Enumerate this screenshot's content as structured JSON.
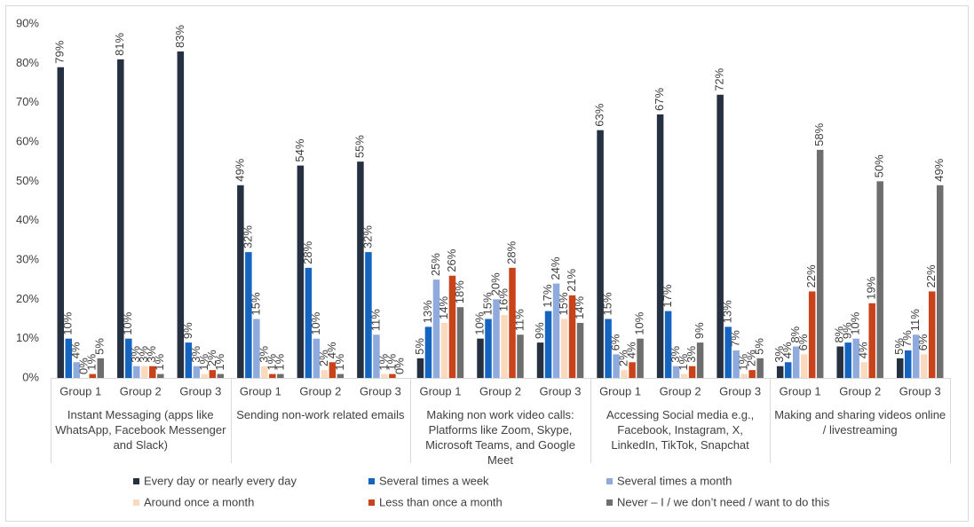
{
  "chart_data": {
    "type": "bar",
    "categories": [
      "Group 1",
      "Group 2",
      "Group 3",
      "Group 1",
      "Group 2",
      "Group 3",
      "Group 1",
      "Group 2",
      "Group 3",
      "Group 1",
      "Group 2",
      "Group 3",
      "Group 1",
      "Group 2",
      "Group 3"
    ],
    "category_groups": [
      "Instant Messaging (apps like WhatsApp, Facebook Messenger and Slack)",
      "Sending non-work related emails",
      "Making non work video calls: Platforms like Zoom, Skype, Microsoft Teams, and Google Meet",
      "Accessing Social media e.g., Facebook, Instagram, X, LinkedIn, TikTok, Snapchat",
      "Making and sharing videos online / livestreaming"
    ],
    "series": [
      {
        "name": "Every day or nearly every day",
        "color": "#253040",
        "values": [
          79,
          81,
          83,
          49,
          54,
          55,
          5,
          10,
          9,
          63,
          67,
          72,
          3,
          8,
          5
        ],
        "value_labels": [
          "79%",
          "81%",
          "83%",
          "49%",
          "54%",
          "55%",
          "5%",
          "10%",
          "9%",
          "63%",
          "67%",
          "72%",
          "3%",
          "8%",
          "5%"
        ]
      },
      {
        "name": "Several times a week",
        "color": "#1565c0",
        "values": [
          10,
          10,
          9,
          32,
          28,
          32,
          13,
          15,
          17,
          15,
          17,
          13,
          4,
          9,
          7
        ],
        "value_labels": [
          "10%",
          "10%",
          "9%",
          "32%",
          "28%",
          "32%",
          "13%",
          "15%",
          "17%",
          "15%",
          "17%",
          "13%",
          "4%",
          "9%",
          "7%"
        ]
      },
      {
        "name": "Several times a month",
        "color": "#8faadc",
        "values": [
          4,
          3,
          3,
          15,
          10,
          11,
          25,
          20,
          24,
          6,
          3,
          7,
          8,
          10,
          11
        ],
        "value_labels": [
          "4%",
          "3%",
          "3%",
          "15%",
          "10%",
          "11%",
          "25%",
          "20%",
          "24%",
          "6%",
          "3%",
          "7%",
          "8%",
          "10%",
          "11%"
        ]
      },
      {
        "name": "Around once a month",
        "color": "#fbd9bd",
        "values": [
          0,
          3,
          1,
          3,
          2,
          1,
          14,
          16,
          15,
          2,
          1,
          1,
          6,
          4,
          6
        ],
        "value_labels": [
          "0%",
          "3%",
          "1%",
          "3%",
          "2%",
          "1%",
          "14%",
          "16%",
          "15%",
          "2%",
          "1%",
          "1%",
          "6%",
          "4%",
          "6%"
        ]
      },
      {
        "name": "Less than once a month",
        "color": "#c9431a",
        "values": [
          1,
          3,
          2,
          1,
          4,
          1,
          26,
          28,
          21,
          4,
          3,
          2,
          22,
          19,
          22
        ],
        "value_labels": [
          "1%",
          "3%",
          "2%",
          "1%",
          "4%",
          "1%",
          "26%",
          "28%",
          "21%",
          "4%",
          "3%",
          "2%",
          "22%",
          "19%",
          "22%"
        ]
      },
      {
        "name": "Never – I / we don’t need / want to do this",
        "color": "#6e6e6e",
        "values": [
          5,
          1,
          1,
          1,
          1,
          0,
          18,
          11,
          14,
          10,
          9,
          5,
          58,
          50,
          49
        ],
        "value_labels": [
          "5%",
          "1%",
          "1%",
          "1%",
          "1%",
          "0%",
          "18%",
          "11%",
          "14%",
          "10%",
          "9%",
          "5%",
          "58%",
          "50%",
          "49%"
        ]
      }
    ],
    "ylim": [
      0,
      90
    ],
    "yticks": [
      {
        "value": 0,
        "label": "0%"
      },
      {
        "value": 10,
        "label": "10%"
      },
      {
        "value": 20,
        "label": "20%"
      },
      {
        "value": 30,
        "label": "30%"
      },
      {
        "value": 40,
        "label": "40%"
      },
      {
        "value": 50,
        "label": "50%"
      },
      {
        "value": 60,
        "label": "60%"
      },
      {
        "value": 70,
        "label": "70%"
      },
      {
        "value": 80,
        "label": "80%"
      },
      {
        "value": 90,
        "label": "90%"
      }
    ],
    "grid": false,
    "legend": "bottom"
  }
}
